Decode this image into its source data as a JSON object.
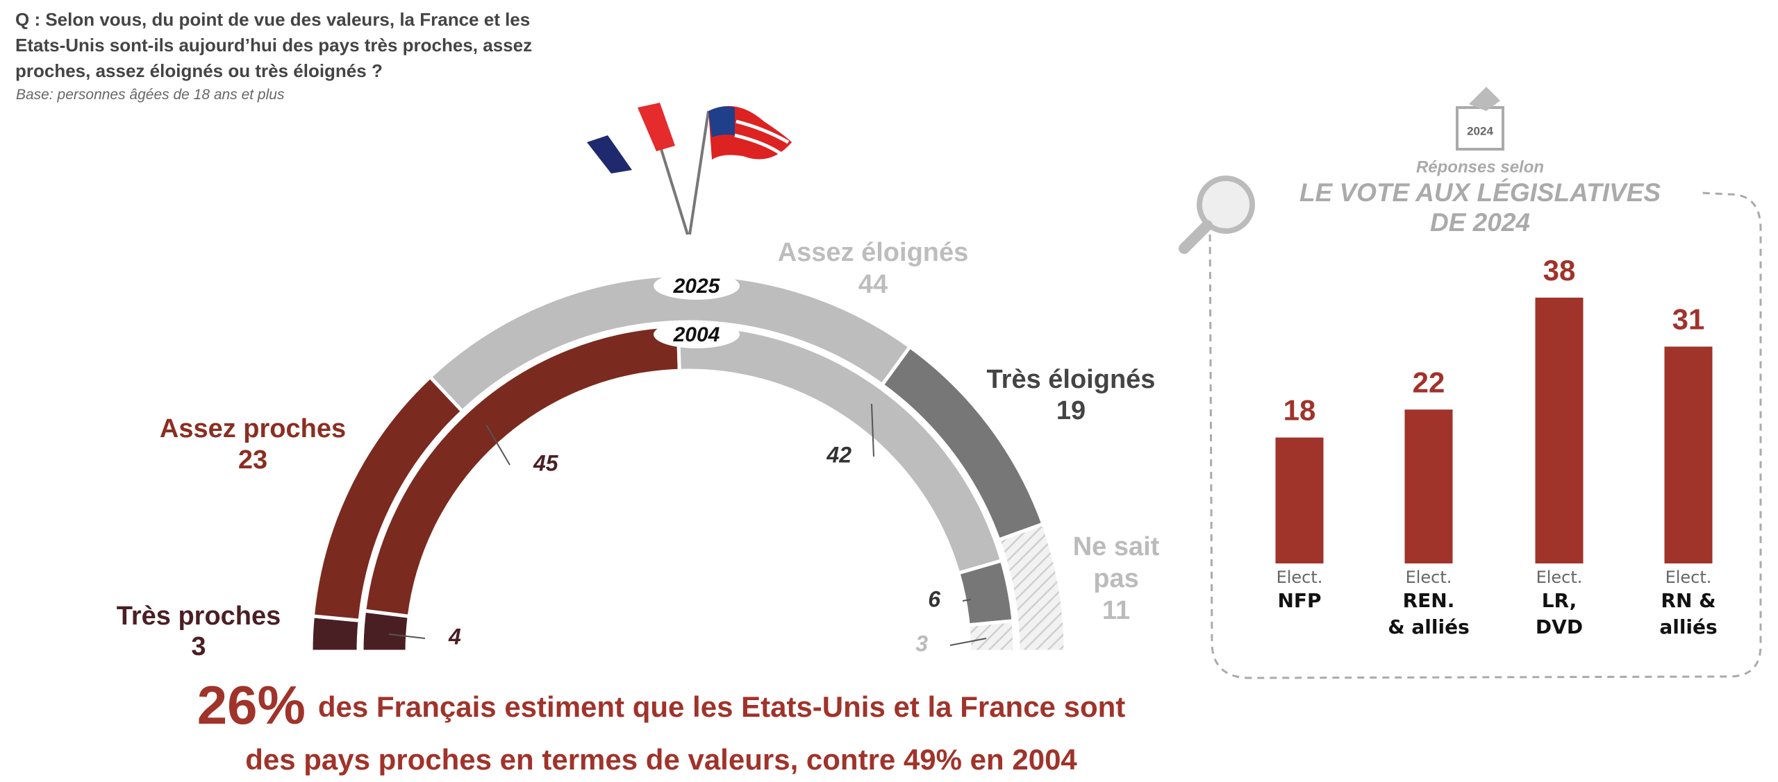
{
  "question": "Q : Selon vous, du point de vue des valeurs, la France et les Etats-Unis sont-ils aujourd’hui des pays très proches, assez proches, assez éloignés ou très éloignés ?",
  "base": "Base: personnes âgées de 18 ans et plus",
  "headline": {
    "figure": "26%",
    "lines": [
      "des Français estiment que les Etats-Unis et la France sont",
      "des pays proches en termes de valeurs, contre 49% en 2004"
    ]
  },
  "chart_data": [
    {
      "type": "half-donut",
      "categories": [
        "Très proches",
        "Assez proches",
        "Assez éloignés",
        "Très éloignés",
        "Ne sait pas"
      ],
      "colors": [
        "#4a1f24",
        "#7b2a1f",
        "#bdbdbd",
        "#777777",
        "#d9d9d9"
      ],
      "label_colors": [
        "#4a1f24",
        "#8b2e22",
        "#bdbdbd",
        "#444444",
        "#bbbbbb"
      ],
      "hatched_category": 4,
      "series": [
        {
          "name": "2025",
          "values": [
            3,
            23,
            44,
            19,
            11
          ]
        },
        {
          "name": "2004",
          "values": [
            4,
            45,
            42,
            6,
            3
          ]
        }
      ]
    },
    {
      "type": "bar",
      "icon_label": "2024",
      "subtitle": "Réponses selon",
      "title": [
        "LE VOTE AUX LÉGISLATIVES",
        "DE 2024"
      ],
      "categories": [
        [
          "Elect.",
          "NFP"
        ],
        [
          "Elect.",
          "REN.",
          "& alliés"
        ],
        [
          "Elect.",
          "LR,",
          "DVD"
        ],
        [
          "Elect.",
          "RN &",
          "alliés"
        ]
      ],
      "values": [
        18,
        22,
        38,
        31
      ],
      "color": "#a0332a"
    }
  ]
}
